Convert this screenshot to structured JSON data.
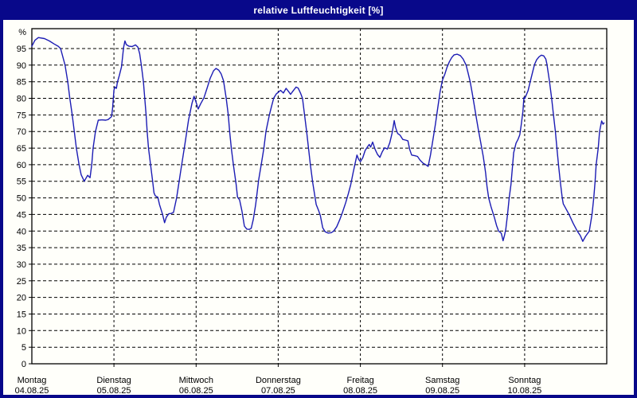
{
  "window": {
    "title": "relative Luftfeuchtigkeit [%]"
  },
  "theme": {
    "frame_color": "#08088a",
    "title_text_color": "#ffffff",
    "background": "#fffffa",
    "line_color": "#1c1cb4",
    "grid_color": "#000000"
  },
  "chart_data": {
    "type": "line",
    "title": "relative Luftfeuchtigkeit [%]",
    "ylabel": "relative Luftfeuchtigkeit",
    "y_unit_label": "%",
    "ylim": [
      0,
      101
    ],
    "y_ticks": [
      0,
      5,
      10,
      15,
      20,
      25,
      30,
      35,
      40,
      45,
      50,
      55,
      60,
      65,
      70,
      75,
      80,
      85,
      90,
      95
    ],
    "x_hours_total": 168,
    "grid": "dashed",
    "legend_position": "none",
    "days": [
      {
        "name": "Montag",
        "date": "04.08.25"
      },
      {
        "name": "Dienstag",
        "date": "05.08.25"
      },
      {
        "name": "Mittwoch",
        "date": "06.08.25"
      },
      {
        "name": "Donnerstag",
        "date": "07.08.25"
      },
      {
        "name": "Freitag",
        "date": "08.08.25"
      },
      {
        "name": "Samstag",
        "date": "09.08.25"
      },
      {
        "name": "Sonntag",
        "date": "10.08.25"
      }
    ],
    "series": [
      {
        "name": "relative Luftfeuchtigkeit [%]",
        "x_unit": "hours_since_monday_00h",
        "points": [
          [
            0,
            95.7
          ],
          [
            0.9,
            97.5
          ],
          [
            1.9,
            98.3
          ],
          [
            3.7,
            98
          ],
          [
            5.1,
            97.3
          ],
          [
            6.5,
            96.4
          ],
          [
            7.7,
            95.7
          ],
          [
            8.4,
            95
          ],
          [
            9.7,
            90
          ],
          [
            10.5,
            85
          ],
          [
            11.1,
            80
          ],
          [
            11.8,
            75
          ],
          [
            12.4,
            70
          ],
          [
            13,
            65
          ],
          [
            13.8,
            60
          ],
          [
            14.4,
            57
          ],
          [
            15.3,
            55
          ],
          [
            16.3,
            56.8
          ],
          [
            17,
            56.1
          ],
          [
            17.5,
            60
          ],
          [
            17.9,
            65
          ],
          [
            18.6,
            70
          ],
          [
            19.4,
            73.4
          ],
          [
            20.5,
            73.5
          ],
          [
            21.6,
            73.4
          ],
          [
            22.3,
            73.6
          ],
          [
            23.3,
            74.5
          ],
          [
            23.6,
            77
          ],
          [
            24,
            82.5
          ],
          [
            24.3,
            83.4
          ],
          [
            24.7,
            83
          ],
          [
            25,
            84.8
          ],
          [
            25.6,
            87
          ],
          [
            26.2,
            89.5
          ],
          [
            26.8,
            95.3
          ],
          [
            27.2,
            97.3
          ],
          [
            27.6,
            96.2
          ],
          [
            28.4,
            95.7
          ],
          [
            29.3,
            95.6
          ],
          [
            30.3,
            96.1
          ],
          [
            31,
            95.4
          ],
          [
            31.5,
            93.5
          ],
          [
            32,
            90
          ],
          [
            32.6,
            85
          ],
          [
            33,
            80
          ],
          [
            33.4,
            75
          ],
          [
            33.7,
            70
          ],
          [
            34.1,
            65
          ],
          [
            34.7,
            60
          ],
          [
            35.3,
            55
          ],
          [
            35.7,
            51.5
          ],
          [
            36.1,
            50.6
          ],
          [
            36.8,
            50.2
          ],
          [
            37.3,
            48
          ],
          [
            38.2,
            45
          ],
          [
            38.8,
            42.5
          ],
          [
            39.3,
            44.2
          ],
          [
            40,
            45.2
          ],
          [
            40.7,
            45.3
          ],
          [
            41.4,
            45.6
          ],
          [
            42.3,
            50
          ],
          [
            43.5,
            58
          ],
          [
            44.7,
            66
          ],
          [
            45.8,
            73.5
          ],
          [
            46.8,
            78.5
          ],
          [
            47.4,
            80.6
          ],
          [
            48.1,
            78.5
          ],
          [
            48.6,
            76.8
          ],
          [
            49.3,
            78.3
          ],
          [
            50.3,
            80.2
          ],
          [
            51.2,
            83
          ],
          [
            52.1,
            86
          ],
          [
            53.1,
            88.3
          ],
          [
            53.8,
            89
          ],
          [
            54.6,
            88.5
          ],
          [
            55.3,
            87.4
          ],
          [
            56,
            85.3
          ],
          [
            56.8,
            80
          ],
          [
            57.4,
            75
          ],
          [
            57.8,
            70
          ],
          [
            58.3,
            64.8
          ],
          [
            58.9,
            60
          ],
          [
            59.7,
            54
          ],
          [
            60.1,
            50.2
          ],
          [
            60.7,
            49.4
          ],
          [
            61.4,
            46
          ],
          [
            62.1,
            41.5
          ],
          [
            62.8,
            40.6
          ],
          [
            63.5,
            40.5
          ],
          [
            64.1,
            40.8
          ],
          [
            64.7,
            43.5
          ],
          [
            65.4,
            48
          ],
          [
            66.3,
            55.5
          ],
          [
            67.1,
            60.5
          ],
          [
            67.8,
            65
          ],
          [
            68.4,
            70
          ],
          [
            69.4,
            75
          ],
          [
            70,
            77.4
          ],
          [
            70.7,
            80.1
          ],
          [
            71.4,
            81.3
          ],
          [
            72.1,
            81.9
          ],
          [
            72.7,
            82.4
          ],
          [
            73.5,
            81.6
          ],
          [
            74.3,
            83
          ],
          [
            75,
            82.1
          ],
          [
            75.6,
            81.2
          ],
          [
            76.4,
            82.3
          ],
          [
            77.2,
            83.4
          ],
          [
            77.8,
            83.1
          ],
          [
            78.5,
            81.6
          ],
          [
            79.1,
            80
          ],
          [
            79.7,
            75
          ],
          [
            80.3,
            70
          ],
          [
            80.8,
            65.5
          ],
          [
            81.4,
            60
          ],
          [
            82.1,
            54.5
          ],
          [
            83.1,
            48
          ],
          [
            83.8,
            46.2
          ],
          [
            84.3,
            44.7
          ],
          [
            85,
            41
          ],
          [
            85.7,
            39.8
          ],
          [
            86.6,
            39.4
          ],
          [
            87.5,
            39.5
          ],
          [
            88.2,
            40
          ],
          [
            89.1,
            41.3
          ],
          [
            90,
            43.5
          ],
          [
            90.8,
            45.7
          ],
          [
            91.7,
            48.5
          ],
          [
            92.5,
            51.3
          ],
          [
            93.2,
            54
          ],
          [
            93.9,
            57.6
          ],
          [
            94.5,
            60.5
          ],
          [
            95,
            62.9
          ],
          [
            95.5,
            61.6
          ],
          [
            96,
            60.9
          ],
          [
            96.7,
            62.1
          ],
          [
            97.4,
            64.3
          ],
          [
            98.1,
            65.4
          ],
          [
            98.6,
            66.1
          ],
          [
            99,
            65.3
          ],
          [
            99.6,
            66.8
          ],
          [
            100.3,
            64.6
          ],
          [
            101,
            63.1
          ],
          [
            101.7,
            62.2
          ],
          [
            102.4,
            63.9
          ],
          [
            103.1,
            65.1
          ],
          [
            103.9,
            64.7
          ],
          [
            104.6,
            66.6
          ],
          [
            105.3,
            69.6
          ],
          [
            105.9,
            73.3
          ],
          [
            106.3,
            71.2
          ],
          [
            106.9,
            69.4
          ],
          [
            107.6,
            68.9
          ],
          [
            108.4,
            67.6
          ],
          [
            109.2,
            67.4
          ],
          [
            109.9,
            67.2
          ],
          [
            110.4,
            64.6
          ],
          [
            111,
            62.9
          ],
          [
            111.9,
            62.7
          ],
          [
            112.7,
            62.5
          ],
          [
            113.5,
            61.3
          ],
          [
            114.4,
            60.4
          ],
          [
            115.1,
            60
          ],
          [
            115.8,
            59.5
          ],
          [
            116.5,
            63
          ],
          [
            117.2,
            67.5
          ],
          [
            117.9,
            72
          ],
          [
            118.6,
            77
          ],
          [
            119.3,
            82
          ],
          [
            120,
            85.5
          ],
          [
            120.7,
            87.3
          ],
          [
            121.3,
            89.3
          ],
          [
            122,
            91
          ],
          [
            122.7,
            92.3
          ],
          [
            123.4,
            93.1
          ],
          [
            124.3,
            93.3
          ],
          [
            125.2,
            92.9
          ],
          [
            126,
            91.9
          ],
          [
            126.9,
            90
          ],
          [
            127.5,
            87.6
          ],
          [
            128.1,
            85
          ],
          [
            128.7,
            81.5
          ],
          [
            129.3,
            77.8
          ],
          [
            129.9,
            74
          ],
          [
            130.5,
            70.5
          ],
          [
            131.2,
            66.6
          ],
          [
            131.9,
            62.5
          ],
          [
            132.6,
            57.5
          ],
          [
            133,
            53.5
          ],
          [
            133.5,
            50
          ],
          [
            134.2,
            47.3
          ],
          [
            134.9,
            45
          ],
          [
            135.2,
            44
          ],
          [
            135.8,
            41.7
          ],
          [
            136.4,
            40
          ],
          [
            136.9,
            39.6
          ],
          [
            137.2,
            39.3
          ],
          [
            137.7,
            37.1
          ],
          [
            138.1,
            38.6
          ],
          [
            138.5,
            40.5
          ],
          [
            139,
            45
          ],
          [
            139.5,
            50
          ],
          [
            140,
            54
          ],
          [
            140.8,
            63.6
          ],
          [
            141.5,
            66.5
          ],
          [
            142.1,
            67.7
          ],
          [
            142.6,
            69
          ],
          [
            143,
            72
          ],
          [
            143.5,
            76
          ],
          [
            143.8,
            80.3
          ],
          [
            144,
            79.9
          ],
          [
            144.4,
            80.8
          ],
          [
            145,
            82.3
          ],
          [
            145.7,
            85.3
          ],
          [
            146.4,
            88.2
          ],
          [
            146.9,
            90.2
          ],
          [
            147.5,
            91.6
          ],
          [
            148.2,
            92.5
          ],
          [
            148.9,
            93
          ],
          [
            149.6,
            92.8
          ],
          [
            150.2,
            91.8
          ],
          [
            150.5,
            90.4
          ],
          [
            151.2,
            85.6
          ],
          [
            151.9,
            80
          ],
          [
            152.4,
            75.2
          ],
          [
            153,
            70
          ],
          [
            153.4,
            65.3
          ],
          [
            153.9,
            60
          ],
          [
            154.4,
            55
          ],
          [
            155,
            50
          ],
          [
            155.3,
            48.2
          ],
          [
            157,
            45
          ],
          [
            158.2,
            42.3
          ],
          [
            159.4,
            40
          ],
          [
            160.3,
            38.6
          ],
          [
            161,
            36.9
          ],
          [
            161.8,
            38.4
          ],
          [
            162.9,
            40
          ],
          [
            163.7,
            45
          ],
          [
            164.2,
            50
          ],
          [
            164.6,
            55
          ],
          [
            164.9,
            60
          ],
          [
            165.5,
            65
          ],
          [
            165.9,
            70
          ],
          [
            166.5,
            73.2
          ],
          [
            166.9,
            72.2
          ],
          [
            167.2,
            72.6
          ]
        ]
      }
    ]
  }
}
